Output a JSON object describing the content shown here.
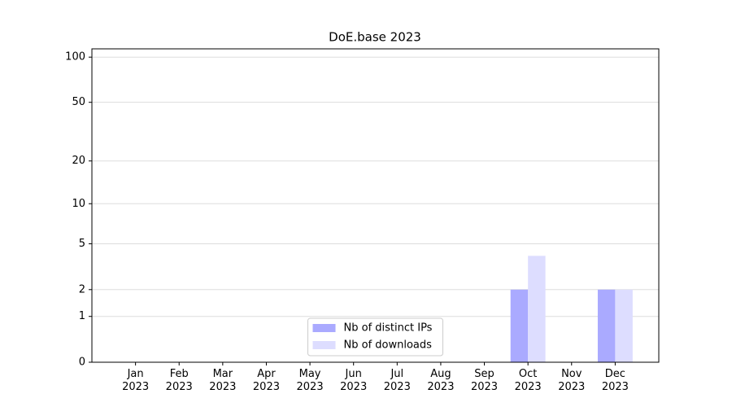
{
  "chart_data": {
    "type": "bar",
    "title": "DoE.base 2023",
    "categories": [
      "Jan 2023",
      "Feb 2023",
      "Mar 2023",
      "Apr 2023",
      "May 2023",
      "Jun 2023",
      "Jul 2023",
      "Aug 2023",
      "Sep 2023",
      "Oct 2023",
      "Nov 2023",
      "Dec 2023"
    ],
    "series": [
      {
        "name": "Nb of distinct IPs",
        "color": "#aaaaff",
        "values": [
          0,
          0,
          0,
          0,
          0,
          0,
          0,
          0,
          0,
          2,
          0,
          2
        ]
      },
      {
        "name": "Nb of downloads",
        "color": "#ddddff",
        "values": [
          0,
          0,
          0,
          0,
          0,
          0,
          0,
          0,
          0,
          4,
          0,
          2
        ]
      }
    ],
    "yscale": "log1p",
    "ylim": [
      0,
      113.5
    ],
    "yticks": [
      0,
      1,
      2,
      5,
      10,
      20,
      50,
      100
    ],
    "grid": true,
    "legend": "lower center"
  }
}
